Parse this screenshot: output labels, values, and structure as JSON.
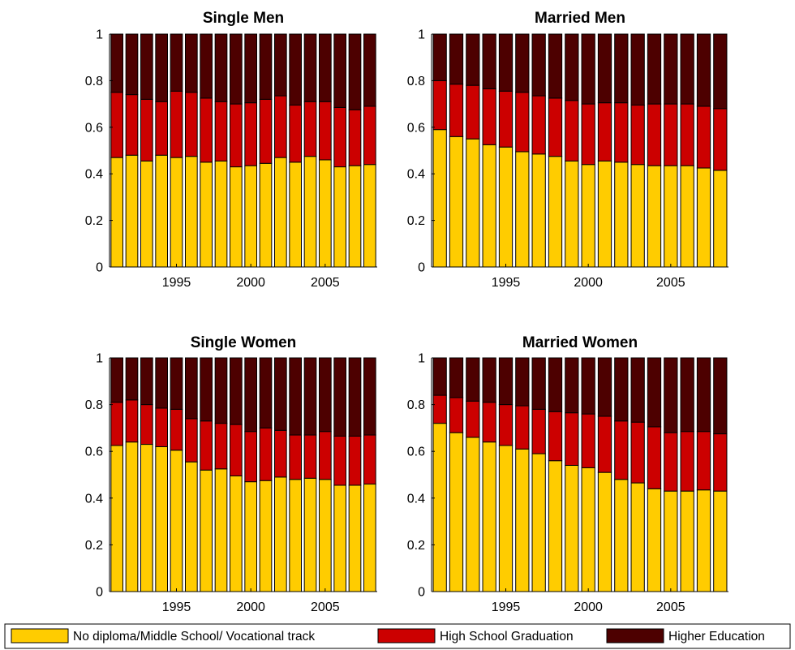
{
  "chart_data": [
    {
      "type": "bar",
      "stacked": true,
      "title": "Single Men",
      "x": [
        1991,
        1992,
        1993,
        1994,
        1995,
        1996,
        1997,
        1998,
        1999,
        2000,
        2001,
        2002,
        2003,
        2004,
        2005,
        2006,
        2007,
        2008
      ],
      "xticks": [
        "1995",
        "2000",
        "2005"
      ],
      "ylim": [
        0,
        1
      ],
      "yticks": [
        "0",
        "0.2",
        "0.4",
        "0.6",
        "0.8",
        "1"
      ],
      "series": [
        {
          "name": "No diploma/Middle School/ Vocational track",
          "values": [
            0.47,
            0.48,
            0.455,
            0.48,
            0.47,
            0.475,
            0.45,
            0.455,
            0.43,
            0.435,
            0.445,
            0.47,
            0.45,
            0.475,
            0.46,
            0.43,
            0.435,
            0.44
          ]
        },
        {
          "name": "High School Graduation",
          "values": [
            0.28,
            0.26,
            0.265,
            0.23,
            0.285,
            0.275,
            0.275,
            0.255,
            0.27,
            0.27,
            0.275,
            0.265,
            0.245,
            0.235,
            0.25,
            0.255,
            0.24,
            0.25
          ]
        },
        {
          "name": "Higher Education",
          "values": [
            0.25,
            0.26,
            0.28,
            0.29,
            0.245,
            0.25,
            0.275,
            0.29,
            0.3,
            0.295,
            0.28,
            0.265,
            0.305,
            0.29,
            0.29,
            0.315,
            0.325,
            0.31
          ]
        }
      ]
    },
    {
      "type": "bar",
      "stacked": true,
      "title": "Married Men",
      "x": [
        1991,
        1992,
        1993,
        1994,
        1995,
        1996,
        1997,
        1998,
        1999,
        2000,
        2001,
        2002,
        2003,
        2004,
        2005,
        2006,
        2007,
        2008
      ],
      "xticks": [
        "1995",
        "2000",
        "2005"
      ],
      "ylim": [
        0,
        1
      ],
      "yticks": [
        "0",
        "0.2",
        "0.4",
        "0.6",
        "0.8",
        "1"
      ],
      "series": [
        {
          "name": "No diploma/Middle School/ Vocational track",
          "values": [
            0.59,
            0.56,
            0.55,
            0.525,
            0.515,
            0.495,
            0.485,
            0.475,
            0.455,
            0.44,
            0.455,
            0.45,
            0.44,
            0.435,
            0.435,
            0.435,
            0.425,
            0.415
          ]
        },
        {
          "name": "High School Graduation",
          "values": [
            0.21,
            0.225,
            0.23,
            0.24,
            0.24,
            0.255,
            0.25,
            0.25,
            0.26,
            0.26,
            0.25,
            0.255,
            0.255,
            0.265,
            0.265,
            0.265,
            0.265,
            0.265
          ]
        },
        {
          "name": "Higher Education",
          "values": [
            0.2,
            0.215,
            0.22,
            0.235,
            0.245,
            0.25,
            0.265,
            0.275,
            0.285,
            0.3,
            0.295,
            0.295,
            0.305,
            0.3,
            0.3,
            0.3,
            0.31,
            0.32
          ]
        }
      ]
    },
    {
      "type": "bar",
      "stacked": true,
      "title": "Single Women",
      "x": [
        1991,
        1992,
        1993,
        1994,
        1995,
        1996,
        1997,
        1998,
        1999,
        2000,
        2001,
        2002,
        2003,
        2004,
        2005,
        2006,
        2007,
        2008
      ],
      "xticks": [
        "1995",
        "2000",
        "2005"
      ],
      "ylim": [
        0,
        1
      ],
      "yticks": [
        "0",
        "0.2",
        "0.4",
        "0.6",
        "0.8",
        "1"
      ],
      "series": [
        {
          "name": "No diploma/Middle School/ Vocational track",
          "values": [
            0.625,
            0.64,
            0.63,
            0.62,
            0.605,
            0.555,
            0.52,
            0.525,
            0.495,
            0.47,
            0.475,
            0.49,
            0.48,
            0.485,
            0.48,
            0.455,
            0.455,
            0.46
          ]
        },
        {
          "name": "High School Graduation",
          "values": [
            0.185,
            0.18,
            0.17,
            0.165,
            0.175,
            0.185,
            0.21,
            0.195,
            0.22,
            0.215,
            0.225,
            0.2,
            0.19,
            0.185,
            0.205,
            0.21,
            0.21,
            0.21
          ]
        },
        {
          "name": "Higher Education",
          "values": [
            0.19,
            0.18,
            0.2,
            0.215,
            0.22,
            0.26,
            0.27,
            0.28,
            0.285,
            0.315,
            0.3,
            0.31,
            0.33,
            0.33,
            0.315,
            0.335,
            0.335,
            0.33
          ]
        }
      ]
    },
    {
      "type": "bar",
      "stacked": true,
      "title": "Married Women",
      "x": [
        1991,
        1992,
        1993,
        1994,
        1995,
        1996,
        1997,
        1998,
        1999,
        2000,
        2001,
        2002,
        2003,
        2004,
        2005,
        2006,
        2007,
        2008
      ],
      "xticks": [
        "1995",
        "2000",
        "2005"
      ],
      "ylim": [
        0,
        1
      ],
      "yticks": [
        "0",
        "0.2",
        "0.4",
        "0.6",
        "0.8",
        "1"
      ],
      "series": [
        {
          "name": "No diploma/Middle School/ Vocational track",
          "values": [
            0.72,
            0.68,
            0.66,
            0.64,
            0.625,
            0.61,
            0.59,
            0.56,
            0.54,
            0.53,
            0.51,
            0.48,
            0.465,
            0.44,
            0.43,
            0.43,
            0.435,
            0.43
          ]
        },
        {
          "name": "High School Graduation",
          "values": [
            0.12,
            0.15,
            0.155,
            0.17,
            0.175,
            0.185,
            0.19,
            0.21,
            0.225,
            0.23,
            0.24,
            0.25,
            0.26,
            0.265,
            0.25,
            0.255,
            0.25,
            0.245
          ]
        },
        {
          "name": "Higher Education",
          "values": [
            0.16,
            0.17,
            0.185,
            0.19,
            0.2,
            0.205,
            0.22,
            0.23,
            0.235,
            0.24,
            0.25,
            0.27,
            0.275,
            0.295,
            0.32,
            0.315,
            0.315,
            0.325
          ]
        }
      ]
    }
  ],
  "legend": {
    "items": [
      {
        "label": "No diploma/Middle School/ Vocational track",
        "color": "#FFCC00"
      },
      {
        "label": "High School Graduation",
        "color": "#CC0000"
      },
      {
        "label": "Higher Education",
        "color": "#4D0000"
      }
    ]
  },
  "colors": [
    "#FFCC00",
    "#CC0000",
    "#4D0000"
  ]
}
